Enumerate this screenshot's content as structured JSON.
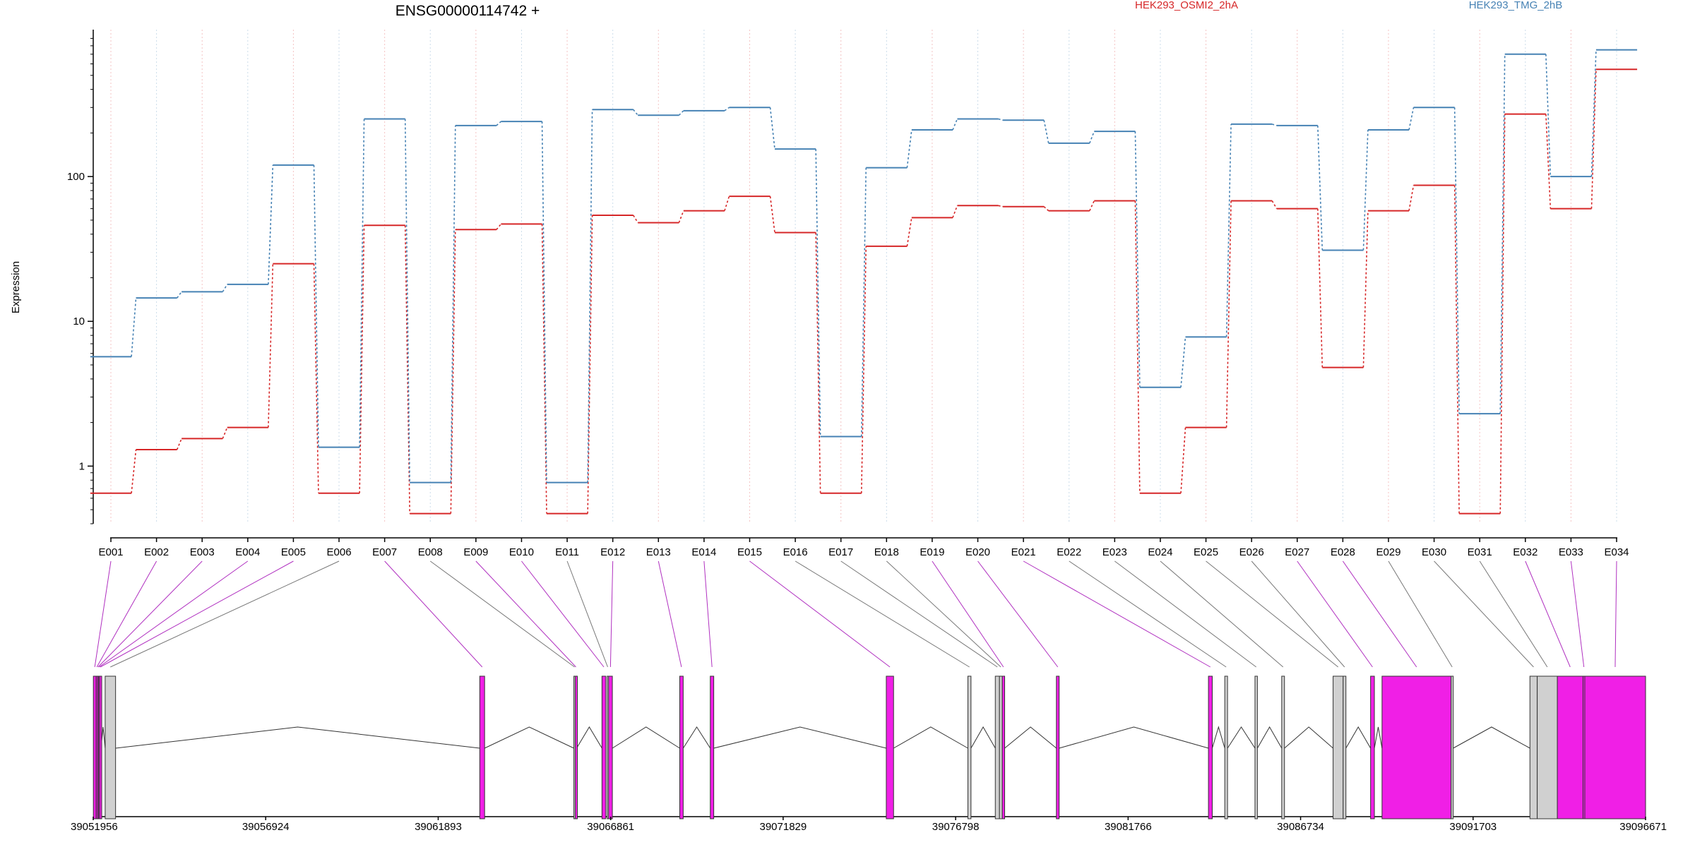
{
  "chart_data": {
    "type": "line",
    "title": "ENSG00000114742 +",
    "ylabel": "Expression",
    "xlabel": "",
    "y_scale": "log",
    "ylim": [
      0.4,
      1000
    ],
    "y_ticks": [
      "1",
      "10",
      "100"
    ],
    "grid": "vertical dotted lines at each exon",
    "legend_placement": "top",
    "categories": [
      "E001",
      "E002",
      "E003",
      "E004",
      "E005",
      "E006",
      "E007",
      "E008",
      "E009",
      "E010",
      "E011",
      "E012",
      "E013",
      "E014",
      "E015",
      "E016",
      "E017",
      "E018",
      "E019",
      "E020",
      "E021",
      "E022",
      "E023",
      "E024",
      "E025",
      "E026",
      "E027",
      "E028",
      "E029",
      "E030",
      "E031",
      "E032",
      "E033",
      "E034"
    ],
    "series": [
      {
        "name": "HEK293_OSMI2_2hA",
        "color": "#d62728",
        "values": [
          0.65,
          1.3,
          1.55,
          1.85,
          25,
          0.65,
          46,
          0.47,
          43,
          47,
          0.47,
          54,
          48,
          58,
          73,
          41,
          0.65,
          33,
          52,
          63,
          62,
          58,
          68,
          0.65,
          1.85,
          68,
          60,
          4.8,
          58,
          87,
          0.47,
          270,
          60,
          550
        ]
      },
      {
        "name": "HEK293_TMG_2hB",
        "color": "#4682b4",
        "values": [
          5.7,
          14.5,
          16,
          18,
          120,
          1.35,
          250,
          0.77,
          225,
          240,
          0.77,
          290,
          265,
          285,
          300,
          155,
          1.6,
          115,
          210,
          250,
          245,
          170,
          205,
          3.5,
          7.8,
          230,
          225,
          31,
          210,
          300,
          2.3,
          700,
          100,
          750
        ]
      }
    ],
    "genomic_axis": {
      "tick_labels": [
        "39051956",
        "39056924",
        "39061893",
        "39066861",
        "39071829",
        "39076798",
        "39081766",
        "39086734",
        "39091703",
        "39096671"
      ],
      "range": [
        39051956,
        39096671
      ]
    },
    "exon_model": {
      "exons": [
        {
          "id": "E001",
          "start": 39051960,
          "end": 39052040,
          "highlight": true
        },
        {
          "id": "E002",
          "start": 39052040,
          "end": 39052080,
          "highlight": true
        },
        {
          "id": "E003",
          "start": 39052080,
          "end": 39052110,
          "highlight": true
        },
        {
          "id": "E004",
          "start": 39052110,
          "end": 39052140,
          "highlight": true
        },
        {
          "id": "E005",
          "start": 39052140,
          "end": 39052180,
          "highlight": true
        },
        {
          "id": "E006",
          "start": 39052300,
          "end": 39052600,
          "highlight": false
        },
        {
          "id": "E007",
          "start": 39063090,
          "end": 39063230,
          "highlight": true
        },
        {
          "id": "E008",
          "start": 39065800,
          "end": 39065840,
          "highlight": false
        },
        {
          "id": "E009",
          "start": 39065840,
          "end": 39065880,
          "highlight": true
        },
        {
          "id": "E010",
          "start": 39066610,
          "end": 39066720,
          "highlight": true
        },
        {
          "id": "E011",
          "start": 39066760,
          "end": 39066790,
          "highlight": false
        },
        {
          "id": "E012",
          "start": 39066800,
          "end": 39066910,
          "highlight": true
        },
        {
          "id": "E013",
          "start": 39068850,
          "end": 39068950,
          "highlight": true
        },
        {
          "id": "E014",
          "start": 39069730,
          "end": 39069830,
          "highlight": true
        },
        {
          "id": "E015",
          "start": 39074800,
          "end": 39075010,
          "highlight": true
        },
        {
          "id": "E016",
          "start": 39077150,
          "end": 39077240,
          "highlight": false
        },
        {
          "id": "E017",
          "start": 39077940,
          "end": 39078060,
          "highlight": false
        },
        {
          "id": "E018",
          "start": 39078060,
          "end": 39078140,
          "highlight": false
        },
        {
          "id": "E019",
          "start": 39078140,
          "end": 39078210,
          "highlight": true
        },
        {
          "id": "E020",
          "start": 39079700,
          "end": 39079780,
          "highlight": true
        },
        {
          "id": "E021",
          "start": 39084080,
          "end": 39084190,
          "highlight": true
        },
        {
          "id": "E022",
          "start": 39084550,
          "end": 39084630,
          "highlight": false
        },
        {
          "id": "E023",
          "start": 39085420,
          "end": 39085490,
          "highlight": false
        },
        {
          "id": "E024",
          "start": 39086190,
          "end": 39086270,
          "highlight": false
        },
        {
          "id": "E025",
          "start": 39087670,
          "end": 39087960,
          "highlight": false
        },
        {
          "id": "E026",
          "start": 39087960,
          "end": 39088040,
          "highlight": false
        },
        {
          "id": "E027",
          "start": 39088750,
          "end": 39088860,
          "highlight": true
        },
        {
          "id": "E028",
          "start": 39089080,
          "end": 39091070,
          "highlight": true
        },
        {
          "id": "E029",
          "start": 39091070,
          "end": 39091130,
          "highlight": false
        },
        {
          "id": "E030",
          "start": 39093340,
          "end": 39093550,
          "highlight": false
        },
        {
          "id": "E031",
          "start": 39093550,
          "end": 39094130,
          "highlight": false
        },
        {
          "id": "E032",
          "start": 39094130,
          "end": 39094870,
          "highlight": true
        },
        {
          "id": "E033",
          "start": 39094870,
          "end": 39094920,
          "highlight": true
        },
        {
          "id": "E034",
          "start": 39094920,
          "end": 39096671,
          "highlight": true
        }
      ]
    }
  }
}
